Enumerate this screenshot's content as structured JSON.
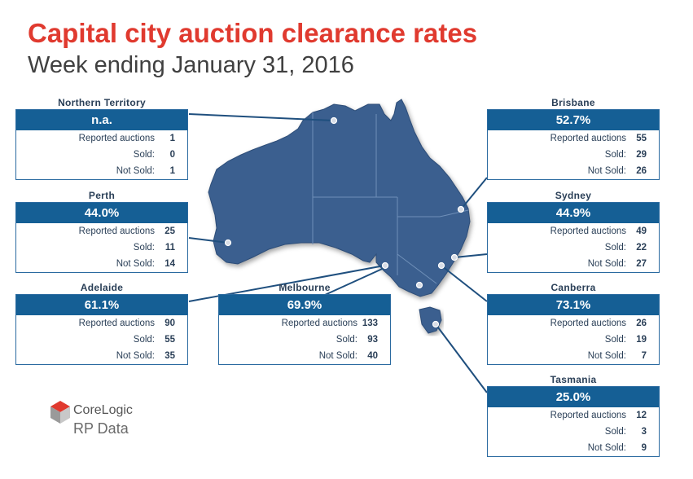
{
  "title": "Capital city auction clearance rates",
  "subtitle": "Week ending January 31, 2016",
  "row_labels": {
    "reported": "Reported auctions",
    "sold": "Sold:",
    "not_sold": "Not Sold:"
  },
  "cities": {
    "northern_territory": {
      "name": "Northern Territory",
      "rate": "n.a.",
      "reported": "1",
      "sold": "0",
      "not_sold": "1"
    },
    "perth": {
      "name": "Perth",
      "rate": "44.0%",
      "reported": "25",
      "sold": "11",
      "not_sold": "14"
    },
    "adelaide": {
      "name": "Adelaide",
      "rate": "61.1%",
      "reported": "90",
      "sold": "55",
      "not_sold": "35"
    },
    "melbourne": {
      "name": "Melbourne",
      "rate": "69.9%",
      "reported": "133",
      "sold": "93",
      "not_sold": "40"
    },
    "brisbane": {
      "name": "Brisbane",
      "rate": "52.7%",
      "reported": "55",
      "sold": "29",
      "not_sold": "26"
    },
    "sydney": {
      "name": "Sydney",
      "rate": "44.9%",
      "reported": "49",
      "sold": "22",
      "not_sold": "27"
    },
    "canberra": {
      "name": "Canberra",
      "rate": "73.1%",
      "reported": "26",
      "sold": "19",
      "not_sold": "7"
    },
    "tasmania": {
      "name": "Tasmania",
      "rate": "25.0%",
      "reported": "12",
      "sold": "3",
      "not_sold": "9"
    }
  },
  "logo": {
    "brand": "CoreLogic",
    "sub": "RP Data"
  },
  "colors": {
    "title": "#e03a2f",
    "header": "#155f95",
    "map": "#3a5f8f",
    "text": "#2a3f57"
  }
}
